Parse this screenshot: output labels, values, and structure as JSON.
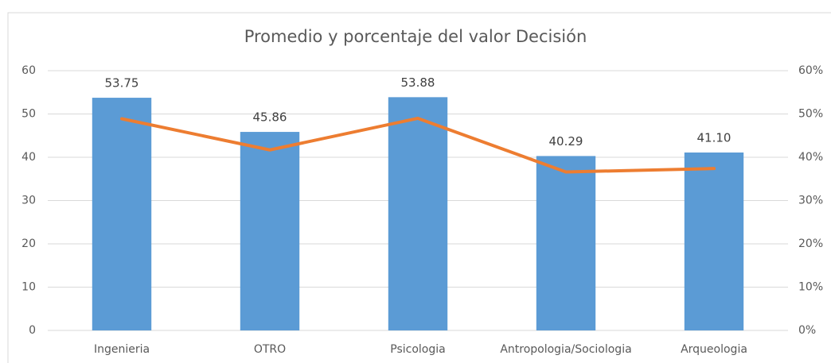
{
  "chart_data": {
    "type": "bar-line",
    "title": "Promedio y porcentaje del valor Decisión",
    "categories": [
      "Ingenieria",
      "OTRO",
      "Psicologia",
      "Antropologia/Sociologia",
      "Arqueologia"
    ],
    "series": [
      {
        "type": "bar",
        "color": "#5b9bd5",
        "values": [
          53.75,
          45.86,
          53.88,
          40.29,
          41.1
        ],
        "value_labels": [
          "53.75",
          "45.86",
          "53.88",
          "40.29",
          "41.10"
        ]
      },
      {
        "type": "line",
        "color": "#ed7d31",
        "axis": "y2",
        "values": [
          48.9,
          41.7,
          49.0,
          36.6,
          37.4
        ]
      }
    ],
    "ylim": [
      0,
      60
    ],
    "yticks": [
      0,
      10,
      20,
      30,
      40,
      50,
      60
    ],
    "y2lim": [
      0,
      60
    ],
    "y2ticks": [
      {
        "value": 0,
        "label": "0%"
      },
      {
        "value": 10,
        "label": "10%"
      },
      {
        "value": 20,
        "label": "20%"
      },
      {
        "value": 30,
        "label": "30%"
      },
      {
        "value": 40,
        "label": "40%"
      },
      {
        "value": 50,
        "label": "50%"
      },
      {
        "value": 60,
        "label": "60%"
      }
    ],
    "grid": true
  }
}
